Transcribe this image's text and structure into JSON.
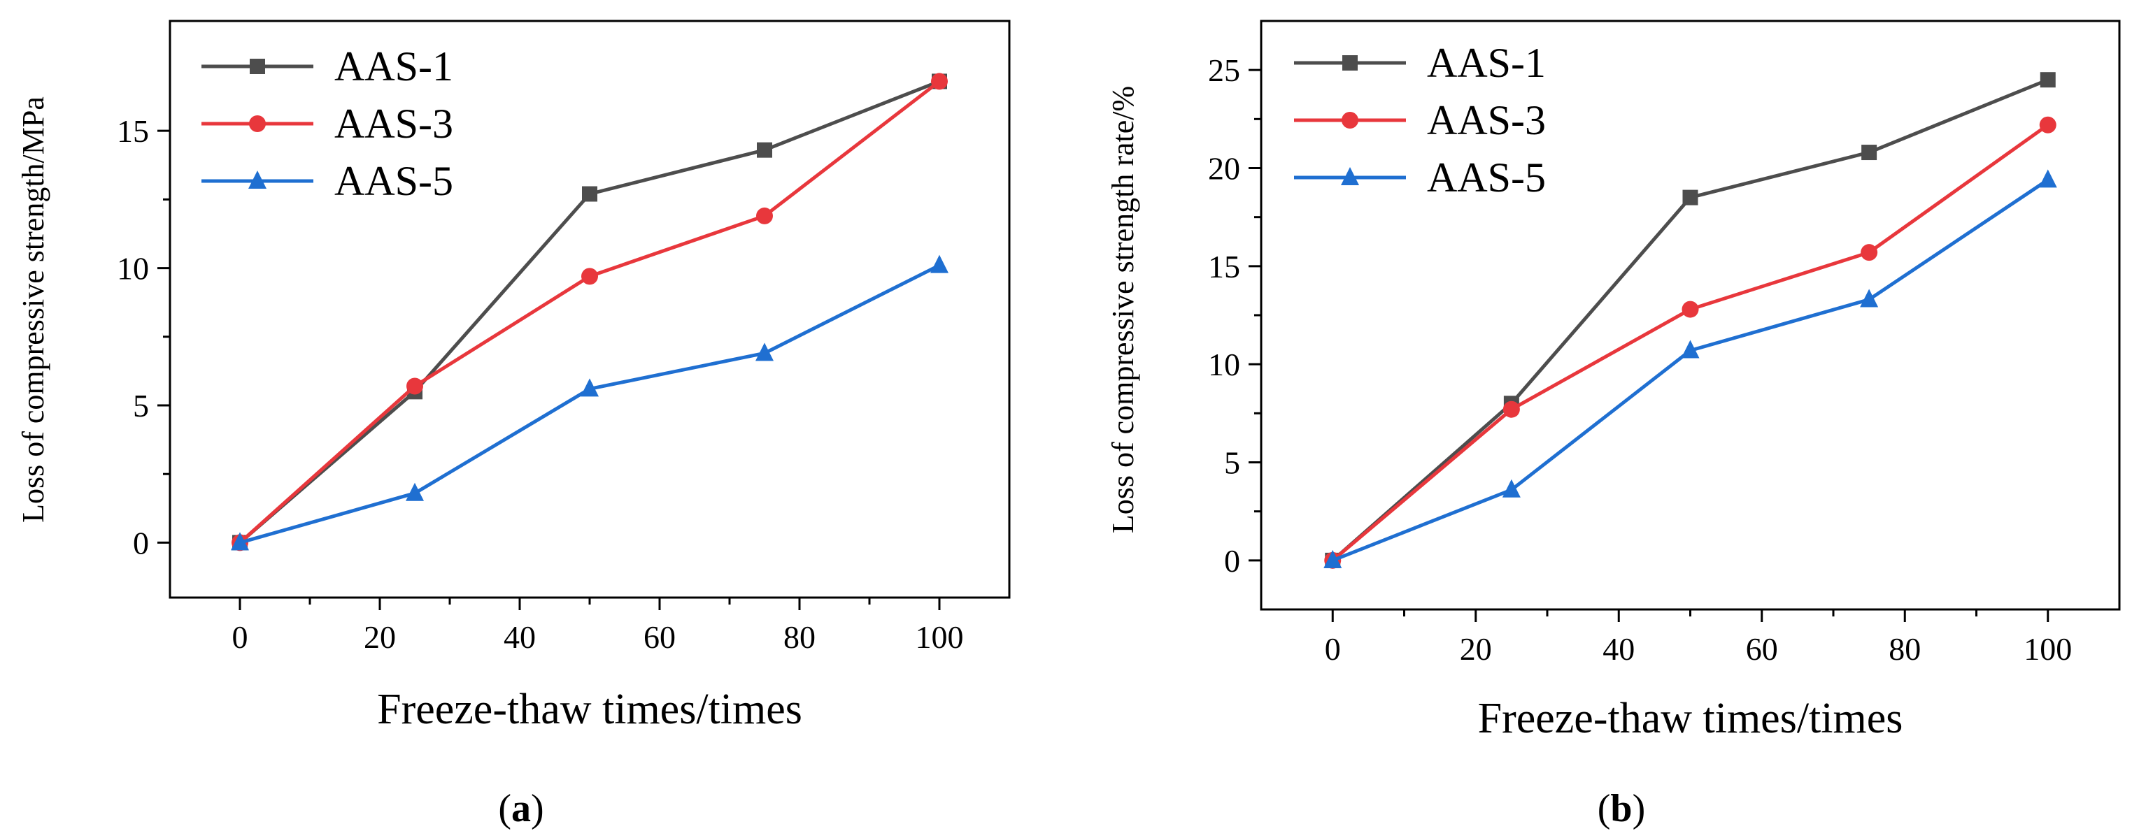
{
  "chart_data": [
    {
      "type": "line",
      "panel": "a",
      "caption_open": "(",
      "caption_letter": "a",
      "caption_close": ")",
      "xlabel": "Freeze-thaw times/times",
      "ylabel": "Loss of compressive strength/MPa",
      "xlim": [
        -10,
        110
      ],
      "ylim": [
        -2,
        19
      ],
      "xticks": [
        0,
        20,
        40,
        60,
        80,
        100
      ],
      "yticks": [
        0,
        5,
        10,
        15
      ],
      "x": [
        0,
        25,
        50,
        75,
        100
      ],
      "series": [
        {
          "name": "AAS-1",
          "color": "#4d4d4d",
          "marker": "square",
          "values": [
            0,
            5.5,
            12.7,
            14.3,
            16.8
          ]
        },
        {
          "name": "AAS-3",
          "color": "#e8373c",
          "marker": "circle",
          "values": [
            0,
            5.7,
            9.7,
            11.9,
            16.8
          ]
        },
        {
          "name": "AAS-5",
          "color": "#1f6fd1",
          "marker": "triangle",
          "values": [
            0,
            1.8,
            5.6,
            6.9,
            10.1
          ]
        }
      ]
    },
    {
      "type": "line",
      "panel": "b",
      "caption_open": "(",
      "caption_letter": "b",
      "caption_close": ")",
      "xlabel": "Freeze-thaw times/times",
      "ylabel": "Loss of compressive strength rate/%",
      "xlim": [
        -10,
        110
      ],
      "ylim": [
        -2.5,
        27.5
      ],
      "xticks": [
        0,
        20,
        40,
        60,
        80,
        100
      ],
      "yticks": [
        0,
        5,
        10,
        15,
        20,
        25
      ],
      "x": [
        0,
        25,
        50,
        75,
        100
      ],
      "series": [
        {
          "name": "AAS-1",
          "color": "#4d4d4d",
          "marker": "square",
          "values": [
            0,
            8.0,
            18.5,
            20.8,
            24.5
          ]
        },
        {
          "name": "AAS-3",
          "color": "#e8373c",
          "marker": "circle",
          "values": [
            0,
            7.7,
            12.8,
            15.7,
            22.2
          ]
        },
        {
          "name": "AAS-5",
          "color": "#1f6fd1",
          "marker": "triangle",
          "values": [
            0,
            3.6,
            10.7,
            13.3,
            19.4
          ]
        }
      ]
    }
  ]
}
